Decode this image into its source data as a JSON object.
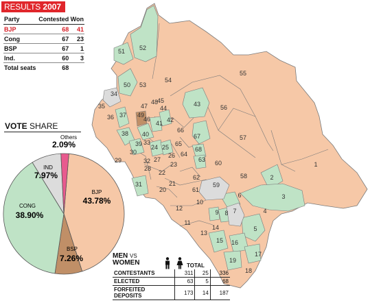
{
  "results": {
    "title_prefix": "RESULTS",
    "year": "2007",
    "headers": {
      "party": "Party",
      "contested": "Contested",
      "won": "Won"
    },
    "rows": [
      {
        "party": "BJP",
        "contested": "68",
        "won": "41"
      },
      {
        "party": "Cong",
        "contested": "67",
        "won": "23"
      },
      {
        "party": "BSP",
        "contested": "67",
        "won": "1"
      },
      {
        "party": "Ind.",
        "contested": "60",
        "won": "3"
      }
    ],
    "total_label": "Total seats",
    "total_value": "68"
  },
  "vote_share": {
    "title_bold": "VOTE",
    "title_rest": "SHARE",
    "slices": [
      {
        "name": "BJP",
        "value": "43.78%",
        "share": 43.78,
        "color": "#f6c8a7"
      },
      {
        "name": "BSP",
        "value": "7.26%",
        "share": 7.26,
        "color": "#c08f67"
      },
      {
        "name": "CONG",
        "value": "38.90%",
        "share": 38.9,
        "color": "#bfe3c6"
      },
      {
        "name": "IND",
        "value": "7.97%",
        "share": 7.97,
        "color": "#dcdcdc"
      },
      {
        "name": "Others",
        "value": "2.09%",
        "share": 2.09,
        "color": "#e85a8e"
      }
    ]
  },
  "men_women": {
    "title_men": "MEN",
    "title_vs": "VS",
    "title_women": "WOMEN",
    "total_label": "TOTAL",
    "men_icon": "man-icon",
    "women_icon": "woman-icon",
    "rows": [
      {
        "label": "CONTESTANTS",
        "men": "311",
        "women": "25",
        "total": "336"
      },
      {
        "label": "ELECTED",
        "men": "63",
        "women": "5",
        "total": "68"
      },
      {
        "label": "FORFEITED DEPOSITS",
        "men": "173",
        "women": "14",
        "total": "187"
      }
    ]
  },
  "map": {
    "colors": {
      "bjp": "#f6c8a7",
      "cong": "#bfe3c6",
      "ind": "#dcdcdc",
      "bsp": "#c08f67",
      "border": "#7a7a7a"
    },
    "labels": [
      "1",
      "2",
      "3",
      "4",
      "5",
      "6",
      "7",
      "8",
      "9",
      "10",
      "11",
      "12",
      "13",
      "14",
      "15",
      "16",
      "17",
      "18",
      "19",
      "20",
      "21",
      "22",
      "23",
      "24",
      "25",
      "26",
      "27",
      "28",
      "29",
      "30",
      "31",
      "32",
      "33",
      "34",
      "35",
      "36",
      "37",
      "38",
      "39",
      "40",
      "41",
      "42",
      "43",
      "44",
      "45",
      "46",
      "47",
      "48",
      "49",
      "50",
      "51",
      "52",
      "53",
      "54",
      "55",
      "56",
      "57",
      "58",
      "59",
      "60",
      "61",
      "62",
      "63",
      "64",
      "65",
      "66",
      "67",
      "68"
    ]
  }
}
